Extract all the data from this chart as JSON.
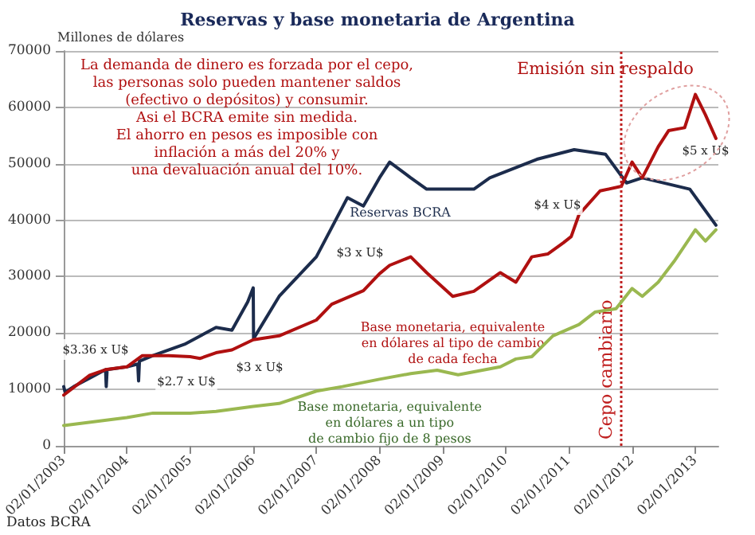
{
  "chart_data": {
    "type": "line",
    "title": "Reservas y base monetaria de Argentina",
    "ylabel": "Millones de dólares",
    "xlim": [
      "2003-01-02",
      "2013-05-15"
    ],
    "xticks": [
      {
        "value": "2003-01-02",
        "label": "02/01/2003"
      },
      {
        "value": "2004-01-02",
        "label": "02/01/2004"
      },
      {
        "value": "2005-01-02",
        "label": "02/01/2005"
      },
      {
        "value": "2006-01-02",
        "label": "02/01/2006"
      },
      {
        "value": "2007-01-02",
        "label": "02/01/2007"
      },
      {
        "value": "2008-01-02",
        "label": "02/01/2008"
      },
      {
        "value": "2009-01-02",
        "label": "02/01/2009"
      },
      {
        "value": "2010-01-02",
        "label": "02/01/2010"
      },
      {
        "value": "2011-01-02",
        "label": "02/01/2011"
      },
      {
        "value": "2012-01-02",
        "label": "02/01/2012"
      },
      {
        "value": "2013-01-02",
        "label": "02/01/2013"
      }
    ],
    "ylim": [
      0,
      70000
    ],
    "yticks": [
      0,
      10000,
      20000,
      30000,
      40000,
      50000,
      60000,
      70000
    ],
    "grid": "y",
    "legend": false,
    "marker": "none",
    "line_style": "solid",
    "series": [
      {
        "name": "Reservas BCRA",
        "color": "#1c2c4c",
        "x": [
          "2003-01-02",
          "2003-01-10",
          "2003-03-01",
          "2003-06-01",
          "2003-09-01",
          "2003-09-05",
          "2003-09-10",
          "2004-01-02",
          "2004-03-05",
          "2004-03-10",
          "2004-03-15",
          "2004-06-01",
          "2004-12-01",
          "2005-06-01",
          "2005-09-01",
          "2005-12-01",
          "2006-01-02",
          "2006-01-04",
          "2006-06-01",
          "2007-01-02",
          "2007-07-01",
          "2007-10-01",
          "2008-01-02",
          "2008-03-01",
          "2008-07-01",
          "2008-10-01",
          "2009-07-01",
          "2009-10-01",
          "2010-07-01",
          "2011-02-01",
          "2011-08-01",
          "2011-12-01",
          "2012-03-01",
          "2012-12-01",
          "2013-05-01"
        ],
        "values": [
          10500,
          9500,
          10500,
          12000,
          13500,
          10500,
          13500,
          14000,
          14500,
          11500,
          15000,
          16000,
          18000,
          21000,
          20500,
          25500,
          28000,
          19000,
          26500,
          33500,
          44000,
          42500,
          47500,
          50300,
          47500,
          45500,
          45500,
          47500,
          50800,
          52500,
          51700,
          46600,
          47500,
          45500,
          39100
        ]
      },
      {
        "name": "Base monetaria, equivalente en dólares al tipo de cambio de cada fecha",
        "color": "#b01010",
        "x": [
          "2003-01-02",
          "2003-06-01",
          "2003-09-01",
          "2004-01-02",
          "2004-04-01",
          "2004-09-01",
          "2005-01-02",
          "2005-03-01",
          "2005-06-01",
          "2005-09-01",
          "2006-01-02",
          "2006-06-01",
          "2007-01-02",
          "2007-04-01",
          "2007-10-01",
          "2008-01-02",
          "2008-03-01",
          "2008-07-01",
          "2008-10-01",
          "2009-03-01",
          "2009-07-01",
          "2009-12-01",
          "2010-03-01",
          "2010-06-01",
          "2010-09-01",
          "2010-12-01",
          "2011-01-15",
          "2011-03-01",
          "2011-07-01",
          "2011-11-01",
          "2012-01-02",
          "2012-03-01",
          "2012-06-01",
          "2012-08-01",
          "2012-11-01",
          "2013-01-02",
          "2013-03-01",
          "2013-05-01"
        ],
        "values": [
          9000,
          12500,
          13500,
          14000,
          16000,
          16000,
          15800,
          15500,
          16500,
          17000,
          18800,
          19500,
          22300,
          25100,
          27500,
          30500,
          32000,
          33500,
          30700,
          26500,
          27400,
          30700,
          29000,
          33500,
          34000,
          36000,
          37100,
          41000,
          45200,
          46000,
          50300,
          47500,
          53000,
          55900,
          56400,
          62300,
          58700,
          54500
        ]
      },
      {
        "name": "Base monetaria, equivalente en dólares a un tipo de cambio fijo de 8 pesos",
        "color": "#9ab850",
        "x": [
          "2003-01-02",
          "2004-01-02",
          "2004-06-01",
          "2005-01-02",
          "2005-06-01",
          "2006-01-02",
          "2006-06-01",
          "2007-01-02",
          "2007-06-01",
          "2008-01-02",
          "2008-07-01",
          "2008-12-01",
          "2009-04-01",
          "2009-12-01",
          "2010-03-01",
          "2010-06-01",
          "2010-10-01",
          "2011-03-01",
          "2011-06-01",
          "2011-10-01",
          "2012-01-02",
          "2012-03-01",
          "2012-06-01",
          "2012-09-01",
          "2013-01-02",
          "2013-03-01",
          "2013-05-01"
        ],
        "values": [
          3600,
          5000,
          5800,
          5800,
          6100,
          7000,
          7500,
          9700,
          10500,
          11800,
          12800,
          13400,
          12600,
          14000,
          15400,
          15800,
          19500,
          21500,
          23700,
          24300,
          27900,
          26500,
          29000,
          32700,
          38300,
          36300,
          38300
        ]
      }
    ],
    "ref_lines": [
      {
        "axis": "x",
        "value": "2011-10-31",
        "label": "Cepo cambiario",
        "color": "#c02020",
        "line_style": "dotted"
      }
    ],
    "annotations": [
      "La demanda de dinero es forzada por el cepo,\nlas personas solo pueden mantener saldos\n(efectivo o depósitos) y consumir.\nAsi el BCRA emite sin medida.\nEl ahorro en pesos es imposible con\ninflación a más del 20% y\nuna devaluación anual del 10%.",
      "Emisión sin respaldo",
      "$3.36 x U$",
      "$2.7 x U$",
      "$3 x U$",
      "$3 x U$",
      "$4 x U$",
      "$5 x U$",
      "Datos BCRA"
    ]
  }
}
